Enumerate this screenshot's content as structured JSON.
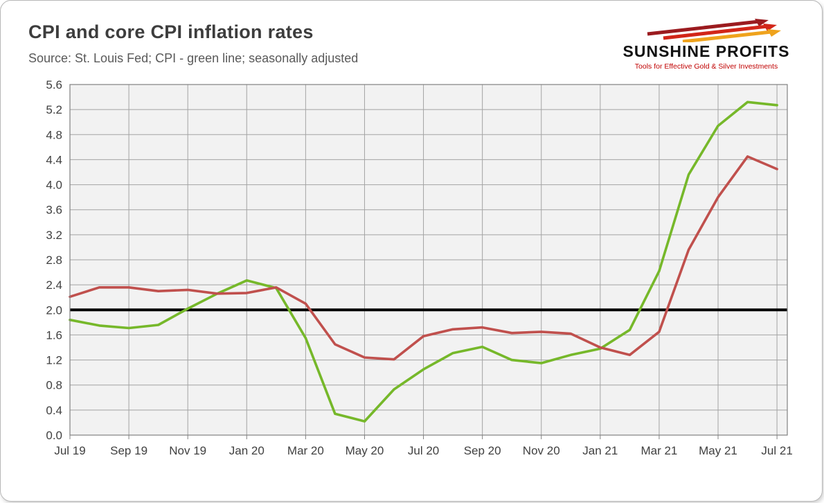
{
  "header": {
    "title": "CPI and core CPI inflation rates",
    "subtitle": "Source: St. Louis Fed; CPI - green line; seasonally adjusted"
  },
  "logo": {
    "name": "SUNSHINE PROFITS",
    "tagline": "Tools for Effective Gold & Silver Investments",
    "colors": [
      "#9b1b1f",
      "#d22619",
      "#efa31d"
    ],
    "tagline_color": "#c00000"
  },
  "chart_data": {
    "type": "line",
    "x": [
      "Jul 19",
      "Aug 19",
      "Sep 19",
      "Oct 19",
      "Nov 19",
      "Dec 19",
      "Jan 20",
      "Feb 20",
      "Mar 20",
      "Apr 20",
      "May 20",
      "Jun 20",
      "Jul 20",
      "Aug 20",
      "Sep 20",
      "Oct 20",
      "Nov 20",
      "Dec 20",
      "Jan 21",
      "Feb 21",
      "Mar 21",
      "Apr 21",
      "May 21",
      "Jun 21",
      "Jul 21"
    ],
    "x_tick_labels": [
      "Jul 19",
      "Sep 19",
      "Nov 19",
      "Jan 20",
      "Mar 20",
      "May 20",
      "Jul 20",
      "Sep 20",
      "Nov 20",
      "Jan 21",
      "Mar 21",
      "May 21",
      "Jul 21"
    ],
    "series": [
      {
        "name": "CPI",
        "color": "#76b82a",
        "values": [
          1.84,
          1.75,
          1.71,
          1.76,
          2.02,
          2.26,
          2.47,
          2.35,
          1.55,
          0.34,
          0.22,
          0.73,
          1.05,
          1.31,
          1.41,
          1.2,
          1.15,
          1.28,
          1.38,
          1.68,
          2.62,
          4.16,
          4.94,
          5.32,
          5.27
        ]
      },
      {
        "name": "Core CPI",
        "color": "#c0504d",
        "values": [
          2.21,
          2.36,
          2.36,
          2.3,
          2.32,
          2.26,
          2.27,
          2.36,
          2.1,
          1.45,
          1.24,
          1.21,
          1.58,
          1.69,
          1.72,
          1.63,
          1.65,
          1.62,
          1.4,
          1.28,
          1.65,
          2.96,
          3.8,
          4.45,
          4.25
        ]
      }
    ],
    "reference_line": {
      "value": 2.0,
      "color": "#000000"
    },
    "ylim": [
      0.0,
      5.6
    ],
    "ytick_step": 0.4,
    "grid": true,
    "legend_position": "none",
    "xlabel": "",
    "ylabel": ""
  }
}
